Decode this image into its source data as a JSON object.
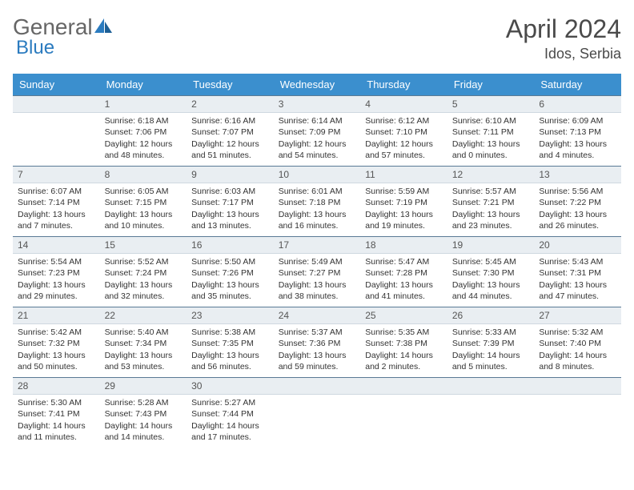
{
  "logo": {
    "word1": "General",
    "word2": "Blue"
  },
  "title": "April 2024",
  "location": "Idos, Serbia",
  "colors": {
    "header_bg": "#3b8fce",
    "daybar_bg": "#e9eef2",
    "daybar_border_top": "#5a7a95"
  },
  "weekdays": [
    "Sunday",
    "Monday",
    "Tuesday",
    "Wednesday",
    "Thursday",
    "Friday",
    "Saturday"
  ],
  "weeks": [
    [
      null,
      {
        "n": "1",
        "sr": "6:18 AM",
        "ss": "7:06 PM",
        "dl": "12 hours and 48 minutes."
      },
      {
        "n": "2",
        "sr": "6:16 AM",
        "ss": "7:07 PM",
        "dl": "12 hours and 51 minutes."
      },
      {
        "n": "3",
        "sr": "6:14 AM",
        "ss": "7:09 PM",
        "dl": "12 hours and 54 minutes."
      },
      {
        "n": "4",
        "sr": "6:12 AM",
        "ss": "7:10 PM",
        "dl": "12 hours and 57 minutes."
      },
      {
        "n": "5",
        "sr": "6:10 AM",
        "ss": "7:11 PM",
        "dl": "13 hours and 0 minutes."
      },
      {
        "n": "6",
        "sr": "6:09 AM",
        "ss": "7:13 PM",
        "dl": "13 hours and 4 minutes."
      }
    ],
    [
      {
        "n": "7",
        "sr": "6:07 AM",
        "ss": "7:14 PM",
        "dl": "13 hours and 7 minutes."
      },
      {
        "n": "8",
        "sr": "6:05 AM",
        "ss": "7:15 PM",
        "dl": "13 hours and 10 minutes."
      },
      {
        "n": "9",
        "sr": "6:03 AM",
        "ss": "7:17 PM",
        "dl": "13 hours and 13 minutes."
      },
      {
        "n": "10",
        "sr": "6:01 AM",
        "ss": "7:18 PM",
        "dl": "13 hours and 16 minutes."
      },
      {
        "n": "11",
        "sr": "5:59 AM",
        "ss": "7:19 PM",
        "dl": "13 hours and 19 minutes."
      },
      {
        "n": "12",
        "sr": "5:57 AM",
        "ss": "7:21 PM",
        "dl": "13 hours and 23 minutes."
      },
      {
        "n": "13",
        "sr": "5:56 AM",
        "ss": "7:22 PM",
        "dl": "13 hours and 26 minutes."
      }
    ],
    [
      {
        "n": "14",
        "sr": "5:54 AM",
        "ss": "7:23 PM",
        "dl": "13 hours and 29 minutes."
      },
      {
        "n": "15",
        "sr": "5:52 AM",
        "ss": "7:24 PM",
        "dl": "13 hours and 32 minutes."
      },
      {
        "n": "16",
        "sr": "5:50 AM",
        "ss": "7:26 PM",
        "dl": "13 hours and 35 minutes."
      },
      {
        "n": "17",
        "sr": "5:49 AM",
        "ss": "7:27 PM",
        "dl": "13 hours and 38 minutes."
      },
      {
        "n": "18",
        "sr": "5:47 AM",
        "ss": "7:28 PM",
        "dl": "13 hours and 41 minutes."
      },
      {
        "n": "19",
        "sr": "5:45 AM",
        "ss": "7:30 PM",
        "dl": "13 hours and 44 minutes."
      },
      {
        "n": "20",
        "sr": "5:43 AM",
        "ss": "7:31 PM",
        "dl": "13 hours and 47 minutes."
      }
    ],
    [
      {
        "n": "21",
        "sr": "5:42 AM",
        "ss": "7:32 PM",
        "dl": "13 hours and 50 minutes."
      },
      {
        "n": "22",
        "sr": "5:40 AM",
        "ss": "7:34 PM",
        "dl": "13 hours and 53 minutes."
      },
      {
        "n": "23",
        "sr": "5:38 AM",
        "ss": "7:35 PM",
        "dl": "13 hours and 56 minutes."
      },
      {
        "n": "24",
        "sr": "5:37 AM",
        "ss": "7:36 PM",
        "dl": "13 hours and 59 minutes."
      },
      {
        "n": "25",
        "sr": "5:35 AM",
        "ss": "7:38 PM",
        "dl": "14 hours and 2 minutes."
      },
      {
        "n": "26",
        "sr": "5:33 AM",
        "ss": "7:39 PM",
        "dl": "14 hours and 5 minutes."
      },
      {
        "n": "27",
        "sr": "5:32 AM",
        "ss": "7:40 PM",
        "dl": "14 hours and 8 minutes."
      }
    ],
    [
      {
        "n": "28",
        "sr": "5:30 AM",
        "ss": "7:41 PM",
        "dl": "14 hours and 11 minutes."
      },
      {
        "n": "29",
        "sr": "5:28 AM",
        "ss": "7:43 PM",
        "dl": "14 hours and 14 minutes."
      },
      {
        "n": "30",
        "sr": "5:27 AM",
        "ss": "7:44 PM",
        "dl": "14 hours and 17 minutes."
      },
      null,
      null,
      null,
      null
    ]
  ],
  "labels": {
    "sunrise": "Sunrise: ",
    "sunset": "Sunset: ",
    "daylight": "Daylight: "
  }
}
